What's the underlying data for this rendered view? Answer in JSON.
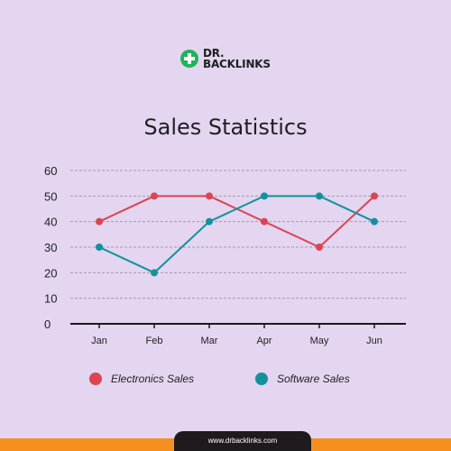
{
  "brand": {
    "line1": "DR.",
    "line2": "BACKLINKS",
    "url": "www.drbacklinks.com"
  },
  "colors": {
    "background": "#e4d5f0",
    "electronics": "#dc4451",
    "software": "#13929d",
    "accent": "#f5901e",
    "footer": "#1e1a1e"
  },
  "chart_data": {
    "type": "line",
    "title": "Sales Statistics",
    "categories": [
      "Jan",
      "Feb",
      "Mar",
      "Apr",
      "May",
      "Jun"
    ],
    "series": [
      {
        "name": "Electronics Sales",
        "color": "#dc4451",
        "values": [
          40,
          50,
          50,
          40,
          30,
          50
        ]
      },
      {
        "name": "Software Sales",
        "color": "#13929d",
        "values": [
          30,
          20,
          40,
          50,
          50,
          40
        ]
      }
    ],
    "yticks": [
      0,
      10,
      20,
      30,
      40,
      50,
      60
    ],
    "ylim": [
      0,
      60
    ],
    "grid": true,
    "legend": "bottom"
  }
}
